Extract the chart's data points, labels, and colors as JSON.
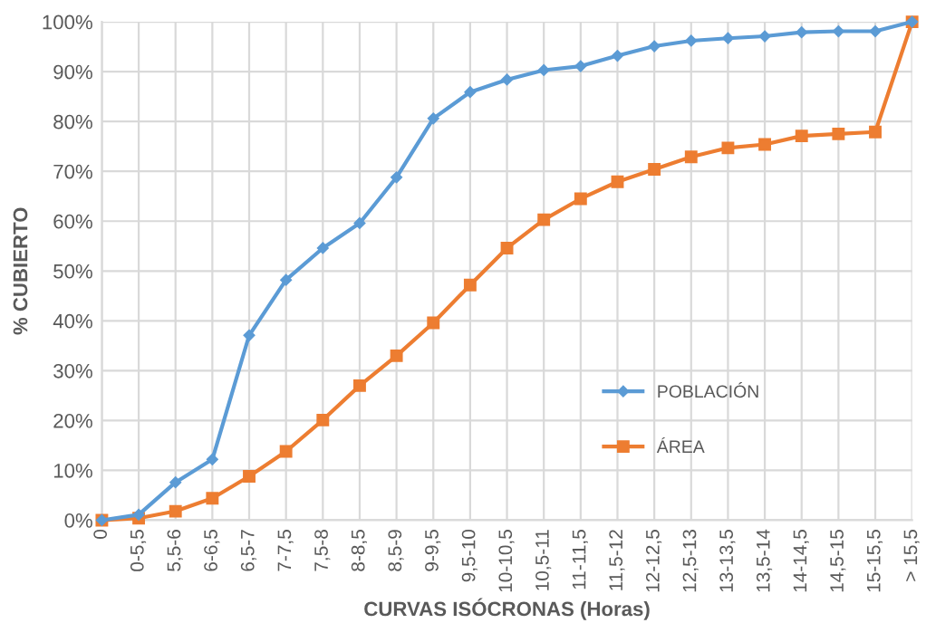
{
  "chart_data": {
    "type": "line",
    "xlabel": "CURVAS ISÓCRONAS (Horas)",
    "ylabel": "% CUBIERTO",
    "categories": [
      "0",
      "0-5,5",
      "5,5-6",
      "6-6,5",
      "6,5-7",
      "7-7,5",
      "7,5-8",
      "8-8,5",
      "8,5-9",
      "9-9,5",
      "9,5-10",
      "10-10,5",
      "10,5-11",
      "11-11,5",
      "11,5-12",
      "12-12,5",
      "12,5-13",
      "13-13,5",
      "13,5-14",
      "14-14,5",
      "14,5-15",
      "15-15,5",
      "> 15,5"
    ],
    "series": [
      {
        "name": "POBLACIÓN",
        "color": "#5b9bd5",
        "marker": "diamond",
        "values": [
          0,
          1.1,
          7.6,
          12.2,
          37.1,
          48.2,
          54.6,
          59.6,
          68.8,
          80.6,
          85.9,
          88.4,
          90.3,
          91.1,
          93.2,
          95.1,
          96.2,
          96.7,
          97.1,
          97.9,
          98.1,
          98.1,
          100
        ]
      },
      {
        "name": "ÁREA",
        "color": "#ed7d31",
        "marker": "square",
        "values": [
          0,
          0.4,
          1.8,
          4.4,
          8.8,
          13.8,
          20.1,
          27.0,
          33.0,
          39.6,
          47.2,
          54.6,
          60.3,
          64.5,
          67.9,
          70.4,
          72.9,
          74.7,
          75.4,
          77.1,
          77.5,
          77.9,
          100
        ]
      }
    ],
    "ylim": [
      0,
      100
    ],
    "yticks": [
      {
        "value": 0,
        "label": "0%"
      },
      {
        "value": 10,
        "label": "10%"
      },
      {
        "value": 20,
        "label": "20%"
      },
      {
        "value": 30,
        "label": "30%"
      },
      {
        "value": 40,
        "label": "40%"
      },
      {
        "value": 50,
        "label": "50%"
      },
      {
        "value": 60,
        "label": "60%"
      },
      {
        "value": 70,
        "label": "70%"
      },
      {
        "value": 80,
        "label": "80%"
      },
      {
        "value": 90,
        "label": "90%"
      },
      {
        "value": 100,
        "label": "100%"
      }
    ],
    "grid": true,
    "legend": "right",
    "line_style": "solid"
  }
}
